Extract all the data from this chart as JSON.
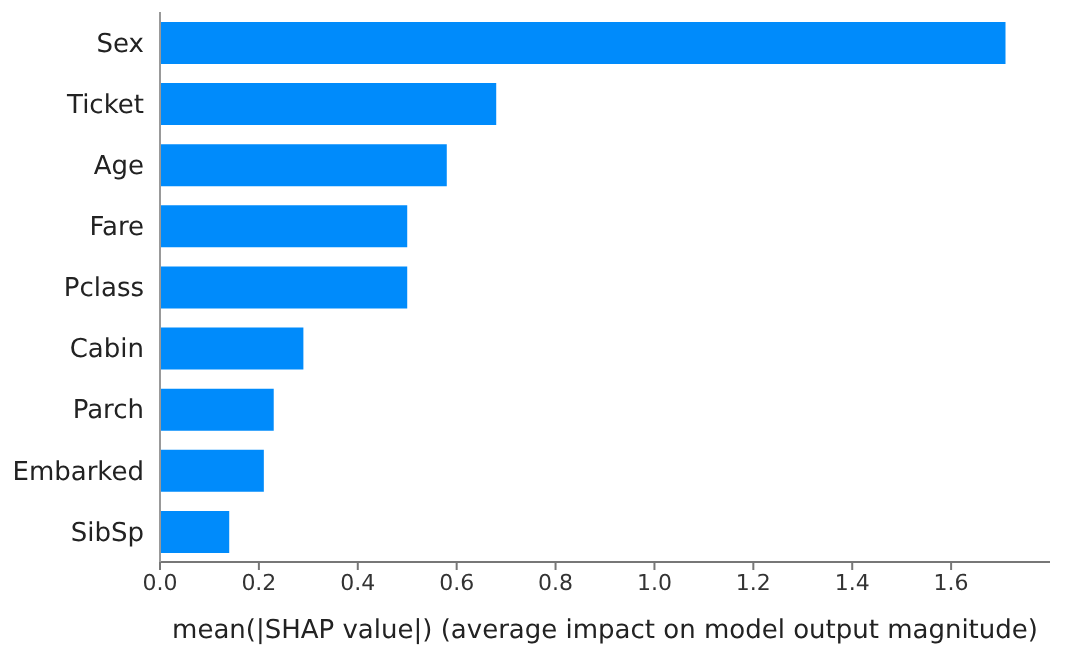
{
  "chart_data": {
    "type": "bar",
    "orientation": "horizontal",
    "xlabel": "mean(|SHAP value|) (average impact on model output magnitude)",
    "categories": [
      "Sex",
      "Ticket",
      "Age",
      "Fare",
      "Pclass",
      "Cabin",
      "Parch",
      "Embarked",
      "SibSp"
    ],
    "values": [
      1.71,
      0.68,
      0.58,
      0.5,
      0.5,
      0.29,
      0.23,
      0.21,
      0.14
    ],
    "color": "#008bfb",
    "xlim": [
      0,
      1.8
    ],
    "xticks": [
      {
        "value": 0,
        "label": "0.0"
      },
      {
        "value": 0.2,
        "label": "0.2"
      },
      {
        "value": 0.4,
        "label": "0.4"
      },
      {
        "value": 0.6,
        "label": "0.6"
      },
      {
        "value": 0.8,
        "label": "0.8"
      },
      {
        "value": 1,
        "label": "1.0"
      },
      {
        "value": 1.2,
        "label": "1.2"
      },
      {
        "value": 1.4,
        "label": "1.4"
      },
      {
        "value": 1.6,
        "label": "1.6"
      }
    ]
  }
}
